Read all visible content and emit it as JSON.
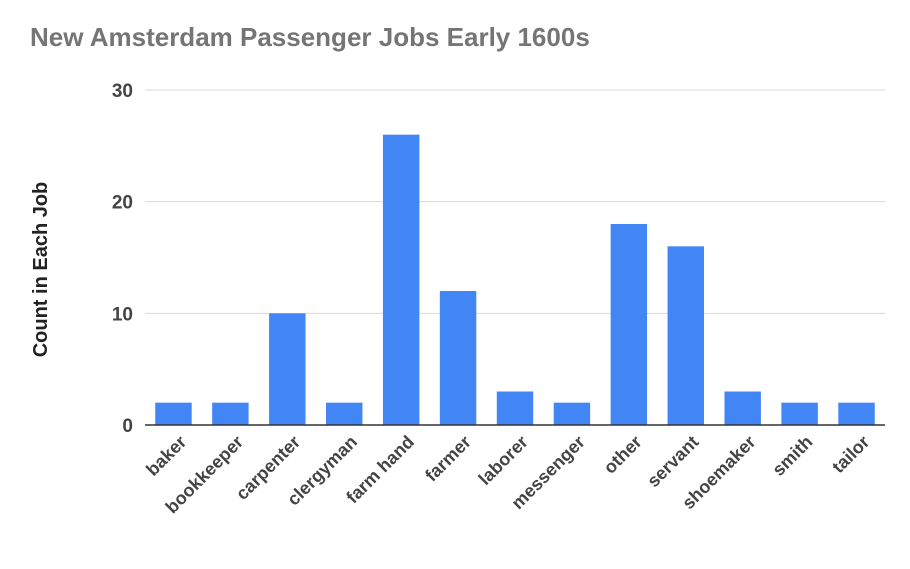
{
  "chart_data": {
    "type": "bar",
    "title": "New Amsterdam Passenger Jobs Early 1600s",
    "xlabel": "",
    "ylabel": "Count in Each Job",
    "ylim": [
      0,
      30
    ],
    "yticks": [
      0,
      10,
      20,
      30
    ],
    "grid": true,
    "legend": "none",
    "bar_color": "#4285f4",
    "categories": [
      "baker",
      "bookkeeper",
      "carpenter",
      "clergyman",
      "farm hand",
      "farmer",
      "laborer",
      "messenger",
      "other",
      "servant",
      "shoemaker",
      "smith",
      "tailor"
    ],
    "values": [
      2,
      2,
      10,
      2,
      26,
      12,
      3,
      2,
      18,
      16,
      3,
      2,
      2
    ]
  }
}
